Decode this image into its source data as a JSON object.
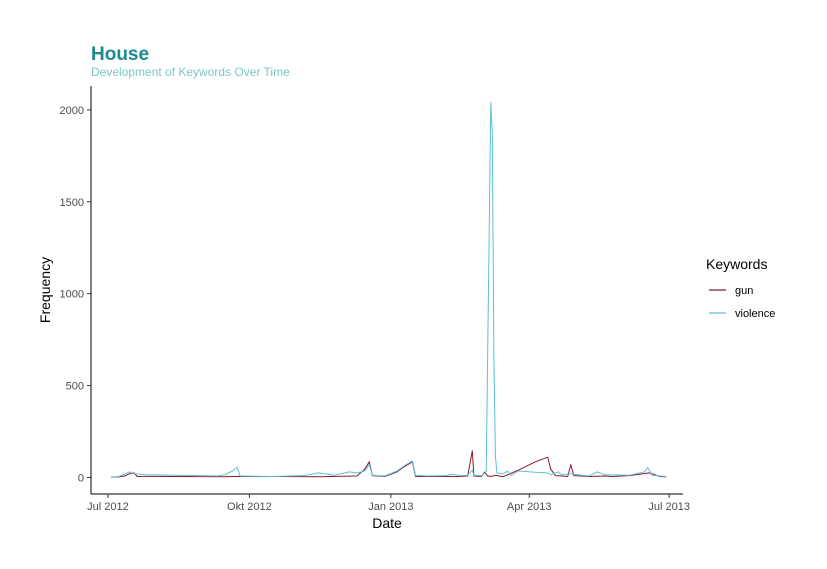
{
  "chart_data": {
    "type": "line",
    "title": "House",
    "subtitle": "Development of Keywords Over Time",
    "xlabel": "Date",
    "ylabel": "Frequency",
    "x_range": [
      "2012-06-20",
      "2013-07-10"
    ],
    "ylim": [
      -90,
      2130
    ],
    "x_ticks": [
      {
        "date": "2012-07-01",
        "label": "Jul 2012"
      },
      {
        "date": "2012-10-01",
        "label": "Okt 2012"
      },
      {
        "date": "2013-01-01",
        "label": "Jan 2013"
      },
      {
        "date": "2013-04-01",
        "label": "Apr 2013"
      },
      {
        "date": "2013-07-01",
        "label": "Jul 2013"
      }
    ],
    "y_ticks": [
      0,
      500,
      1000,
      1500,
      2000
    ],
    "grid": false,
    "legend": {
      "title": "Keywords",
      "position": "right"
    },
    "series": [
      {
        "name": "gun",
        "color": "#8b1a2e",
        "points": [
          [
            "2012-07-03",
            1
          ],
          [
            "2012-07-08",
            3
          ],
          [
            "2012-07-12",
            8
          ],
          [
            "2012-07-15",
            20
          ],
          [
            "2012-07-18",
            25
          ],
          [
            "2012-07-20",
            5
          ],
          [
            "2012-07-26",
            6
          ],
          [
            "2012-08-15",
            5
          ],
          [
            "2012-09-15",
            4
          ],
          [
            "2012-09-25",
            6
          ],
          [
            "2012-10-15",
            5
          ],
          [
            "2012-11-15",
            4
          ],
          [
            "2012-12-10",
            8
          ],
          [
            "2012-12-15",
            45
          ],
          [
            "2012-12-18",
            85
          ],
          [
            "2012-12-20",
            10
          ],
          [
            "2012-12-28",
            5
          ],
          [
            "2013-01-05",
            30
          ],
          [
            "2013-01-10",
            60
          ],
          [
            "2013-01-15",
            85
          ],
          [
            "2013-01-17",
            6
          ],
          [
            "2013-01-25",
            5
          ],
          [
            "2013-02-05",
            5
          ],
          [
            "2013-02-15",
            6
          ],
          [
            "2013-02-20",
            8
          ],
          [
            "2013-02-23",
            145
          ],
          [
            "2013-02-24",
            8
          ],
          [
            "2013-03-01",
            6
          ],
          [
            "2013-03-03",
            30
          ],
          [
            "2013-03-05",
            8
          ],
          [
            "2013-03-07",
            5
          ],
          [
            "2013-03-10",
            12
          ],
          [
            "2013-03-15",
            4
          ],
          [
            "2013-03-25",
            40
          ],
          [
            "2013-04-05",
            85
          ],
          [
            "2013-04-13",
            110
          ],
          [
            "2013-04-15",
            45
          ],
          [
            "2013-04-18",
            10
          ],
          [
            "2013-04-22",
            8
          ],
          [
            "2013-04-26",
            5
          ],
          [
            "2013-04-28",
            70
          ],
          [
            "2013-04-30",
            10
          ],
          [
            "2013-05-10",
            5
          ],
          [
            "2013-05-20",
            8
          ],
          [
            "2013-05-25",
            5
          ],
          [
            "2013-06-05",
            10
          ],
          [
            "2013-06-12",
            18
          ],
          [
            "2013-06-18",
            25
          ],
          [
            "2013-06-25",
            5
          ],
          [
            "2013-06-29",
            3
          ]
        ]
      },
      {
        "name": "violence",
        "color": "#5bc0d6",
        "points": [
          [
            "2012-07-03",
            2
          ],
          [
            "2012-07-08",
            5
          ],
          [
            "2012-07-12",
            18
          ],
          [
            "2012-07-15",
            30
          ],
          [
            "2012-07-18",
            20
          ],
          [
            "2012-07-26",
            15
          ],
          [
            "2012-08-15",
            12
          ],
          [
            "2012-09-10",
            8
          ],
          [
            "2012-09-15",
            15
          ],
          [
            "2012-09-20",
            35
          ],
          [
            "2012-09-23",
            55
          ],
          [
            "2012-09-25",
            8
          ],
          [
            "2012-10-15",
            5
          ],
          [
            "2012-11-05",
            10
          ],
          [
            "2012-11-15",
            25
          ],
          [
            "2012-11-25",
            12
          ],
          [
            "2012-12-05",
            30
          ],
          [
            "2012-12-10",
            25
          ],
          [
            "2012-12-15",
            35
          ],
          [
            "2012-12-18",
            70
          ],
          [
            "2012-12-20",
            12
          ],
          [
            "2012-12-28",
            8
          ],
          [
            "2013-01-05",
            35
          ],
          [
            "2013-01-10",
            65
          ],
          [
            "2013-01-15",
            90
          ],
          [
            "2013-01-17",
            12
          ],
          [
            "2013-01-25",
            8
          ],
          [
            "2013-02-05",
            10
          ],
          [
            "2013-02-10",
            18
          ],
          [
            "2013-02-15",
            10
          ],
          [
            "2013-02-20",
            12
          ],
          [
            "2013-02-23",
            40
          ],
          [
            "2013-02-24",
            12
          ],
          [
            "2013-03-01",
            10
          ],
          [
            "2013-03-04",
            30
          ],
          [
            "2013-03-07",
            2040
          ],
          [
            "2013-03-08",
            1870
          ],
          [
            "2013-03-09",
            650
          ],
          [
            "2013-03-10",
            120
          ],
          [
            "2013-03-11",
            25
          ],
          [
            "2013-03-15",
            20
          ],
          [
            "2013-03-18",
            35
          ],
          [
            "2013-03-20",
            10
          ],
          [
            "2013-03-25",
            35
          ],
          [
            "2013-04-05",
            28
          ],
          [
            "2013-04-13",
            25
          ],
          [
            "2013-04-15",
            15
          ],
          [
            "2013-04-20",
            30
          ],
          [
            "2013-04-22",
            15
          ],
          [
            "2013-04-28",
            20
          ],
          [
            "2013-05-05",
            12
          ],
          [
            "2013-05-10",
            8
          ],
          [
            "2013-05-15",
            30
          ],
          [
            "2013-05-20",
            15
          ],
          [
            "2013-06-05",
            12
          ],
          [
            "2013-06-15",
            30
          ],
          [
            "2013-06-17",
            55
          ],
          [
            "2013-06-20",
            12
          ],
          [
            "2013-06-29",
            5
          ]
        ]
      }
    ]
  }
}
